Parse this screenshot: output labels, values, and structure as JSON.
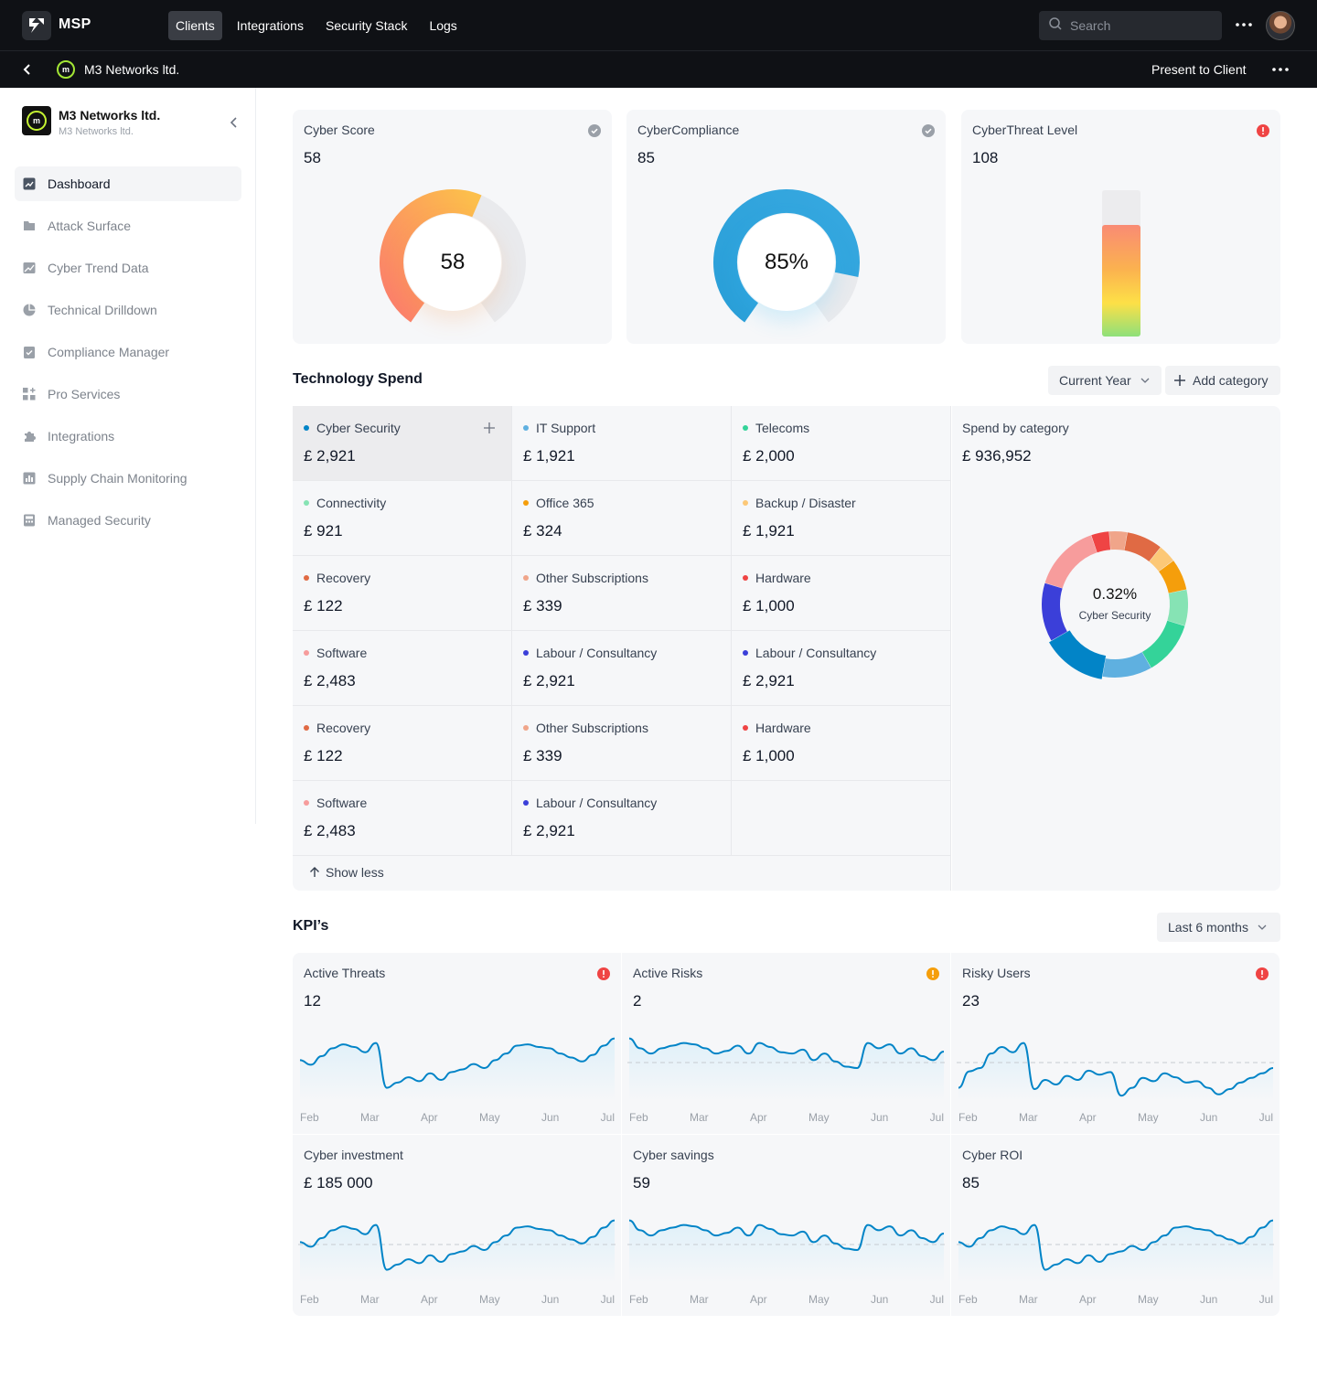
{
  "topbar": {
    "brand": "MSP",
    "nav": [
      {
        "label": "Clients",
        "active": true
      },
      {
        "label": "Integrations",
        "active": false
      },
      {
        "label": "Security Stack",
        "active": false
      },
      {
        "label": "Logs",
        "active": false
      }
    ],
    "search_placeholder": "Search"
  },
  "subbar": {
    "client_icon": "m",
    "title": "M3 Networks ltd.",
    "present_label": "Present to Client"
  },
  "sidebar": {
    "client_logo": "m",
    "client_name": "M3 Networks ltd.",
    "client_subtitle": "M3 Networks ltd.",
    "items": [
      {
        "label": "Dashboard",
        "icon": "dashboard-icon",
        "active": true
      },
      {
        "label": "Attack Surface",
        "icon": "folder-icon",
        "active": false
      },
      {
        "label": "Cyber Trend Data",
        "icon": "chart-image-icon",
        "active": false
      },
      {
        "label": "Technical Drilldown",
        "icon": "pie-icon",
        "active": false
      },
      {
        "label": "Compliance Manager",
        "icon": "clipboard-check-icon",
        "active": false
      },
      {
        "label": "Pro Services",
        "icon": "grid-plus-icon",
        "active": false
      },
      {
        "label": "Integrations",
        "icon": "puzzle-icon",
        "active": false
      },
      {
        "label": "Supply Chain Monitoring",
        "icon": "bar-chart-icon",
        "active": false
      },
      {
        "label": "Managed Security",
        "icon": "calculator-icon",
        "active": false
      }
    ]
  },
  "score_cards": {
    "cyber_score": {
      "title": "Cyber Score",
      "value": "58",
      "center": "58",
      "status": "check-icon",
      "fraction": 0.58
    },
    "compliance": {
      "title": "CyberCompliance",
      "value": "85",
      "center": "85%",
      "status": "check-icon",
      "fraction": 0.85
    },
    "threat": {
      "title": "CyberThreat Level",
      "value": "108",
      "status": "alert-icon",
      "level": 0.76
    }
  },
  "tech_spend": {
    "title": "Technology Spend",
    "period": "Current Year",
    "add_label": "Add category",
    "show_less": "Show less",
    "categories": [
      {
        "name": "Cyber Security",
        "amount": "£ 2,921",
        "color": "#0284c7"
      },
      {
        "name": "IT Support",
        "amount": "£ 1,921",
        "color": "#5fb0e0"
      },
      {
        "name": "Telecoms",
        "amount": "£ 2,000",
        "color": "#34d399"
      },
      {
        "name": "Connectivity",
        "amount": "£ 921",
        "color": "#86e3b4"
      },
      {
        "name": "Office 365",
        "amount": "£ 324",
        "color": "#f59e0b"
      },
      {
        "name": "Backup / Disaster",
        "amount": "£ 1,921",
        "color": "#fcc877"
      },
      {
        "name": "Recovery",
        "amount": "£ 122",
        "color": "#e06a44"
      },
      {
        "name": "Other Subscriptions",
        "amount": "£ 339",
        "color": "#f0a58a"
      },
      {
        "name": "Hardware",
        "amount": "£ 1,000",
        "color": "#ef4444"
      },
      {
        "name": "Software",
        "amount": "£ 2,483",
        "color": "#f79c9c"
      },
      {
        "name": "Labour / Consultancy",
        "amount": "£ 2,921",
        "color": "#3b3fd9"
      },
      {
        "name": "Labour / Consultancy",
        "amount": "£ 2,921",
        "color": "#3b3fd9"
      },
      {
        "name": "Recovery",
        "amount": "£ 122",
        "color": "#e06a44"
      },
      {
        "name": "Other Subscriptions",
        "amount": "£ 339",
        "color": "#f0a58a"
      },
      {
        "name": "Hardware",
        "amount": "£ 1,000",
        "color": "#ef4444"
      },
      {
        "name": "Software",
        "amount": "£ 2,483",
        "color": "#f79c9c"
      },
      {
        "name": "Labour / Consultancy",
        "amount": "£ 2,921",
        "color": "#3b3fd9"
      }
    ],
    "spend_by": {
      "title": "Spend by category",
      "total": "£ 936,952",
      "center_pct": "0.32%",
      "center_label": "Cyber Security",
      "slices": [
        {
          "color": "#0284c7",
          "share": 0.14
        },
        {
          "color": "#3b3fd9",
          "share": 0.13
        },
        {
          "color": "#f79c9c",
          "share": 0.15
        },
        {
          "color": "#ef4444",
          "share": 0.04
        },
        {
          "color": "#f0a58a",
          "share": 0.04
        },
        {
          "color": "#e06a44",
          "share": 0.08
        },
        {
          "color": "#fcc877",
          "share": 0.04
        },
        {
          "color": "#f59e0b",
          "share": 0.07
        },
        {
          "color": "#86e3b4",
          "share": 0.08
        },
        {
          "color": "#34d399",
          "share": 0.12
        },
        {
          "color": "#5fb0e0",
          "share": 0.11
        }
      ]
    }
  },
  "kpis": {
    "title": "KPI’s",
    "period": "Last 6 months",
    "months": [
      "Feb",
      "Mar",
      "Apr",
      "May",
      "Jun",
      "Jul"
    ],
    "cards": [
      {
        "title": "Active Threats",
        "value": "12",
        "status": "alert-red",
        "baseline": false,
        "series": [
          0.62,
          0.55,
          0.68,
          0.8,
          0.86,
          0.82,
          0.74,
          0.88,
          0.2,
          0.28,
          0.36,
          0.3,
          0.42,
          0.32,
          0.44,
          0.48,
          0.56,
          0.5,
          0.62,
          0.72,
          0.84,
          0.86,
          0.82,
          0.8,
          0.72,
          0.66,
          0.6,
          0.7,
          0.84,
          0.95
        ]
      },
      {
        "title": "Active Risks",
        "value": "2",
        "status": "alert-orange",
        "baseline": true,
        "series": [
          0.95,
          0.8,
          0.72,
          0.8,
          0.84,
          0.88,
          0.86,
          0.8,
          0.72,
          0.76,
          0.84,
          0.72,
          0.88,
          0.82,
          0.74,
          0.72,
          0.78,
          0.62,
          0.72,
          0.6,
          0.52,
          0.5,
          0.88,
          0.8,
          0.86,
          0.72,
          0.8,
          0.68,
          0.62,
          0.75
        ]
      },
      {
        "title": "Risky Users",
        "value": "23",
        "status": "alert-red",
        "baseline": true,
        "series": [
          0.2,
          0.45,
          0.5,
          0.72,
          0.82,
          0.74,
          0.88,
          0.18,
          0.32,
          0.25,
          0.38,
          0.32,
          0.46,
          0.4,
          0.44,
          0.08,
          0.2,
          0.35,
          0.3,
          0.42,
          0.36,
          0.28,
          0.3,
          0.2,
          0.1,
          0.18,
          0.28,
          0.35,
          0.42,
          0.5
        ]
      },
      {
        "title": "Cyber investment",
        "value": "£ 185 000",
        "status": "",
        "baseline": true,
        "series": [
          0.62,
          0.55,
          0.68,
          0.8,
          0.86,
          0.82,
          0.74,
          0.88,
          0.2,
          0.28,
          0.36,
          0.3,
          0.42,
          0.32,
          0.44,
          0.48,
          0.56,
          0.5,
          0.62,
          0.72,
          0.84,
          0.86,
          0.82,
          0.8,
          0.72,
          0.66,
          0.6,
          0.7,
          0.84,
          0.95
        ]
      },
      {
        "title": "Cyber savings",
        "value": "59",
        "status": "",
        "baseline": true,
        "series": [
          0.95,
          0.8,
          0.72,
          0.8,
          0.84,
          0.88,
          0.86,
          0.8,
          0.72,
          0.76,
          0.84,
          0.72,
          0.88,
          0.82,
          0.74,
          0.72,
          0.78,
          0.62,
          0.72,
          0.6,
          0.52,
          0.5,
          0.88,
          0.8,
          0.86,
          0.72,
          0.8,
          0.68,
          0.62,
          0.75
        ]
      },
      {
        "title": "Cyber ROI",
        "value": "85",
        "status": "",
        "baseline": true,
        "series": [
          0.62,
          0.55,
          0.68,
          0.8,
          0.86,
          0.82,
          0.74,
          0.88,
          0.2,
          0.28,
          0.36,
          0.3,
          0.42,
          0.32,
          0.44,
          0.48,
          0.56,
          0.5,
          0.62,
          0.72,
          0.84,
          0.86,
          0.82,
          0.8,
          0.72,
          0.66,
          0.6,
          0.7,
          0.84,
          0.95
        ]
      }
    ]
  }
}
